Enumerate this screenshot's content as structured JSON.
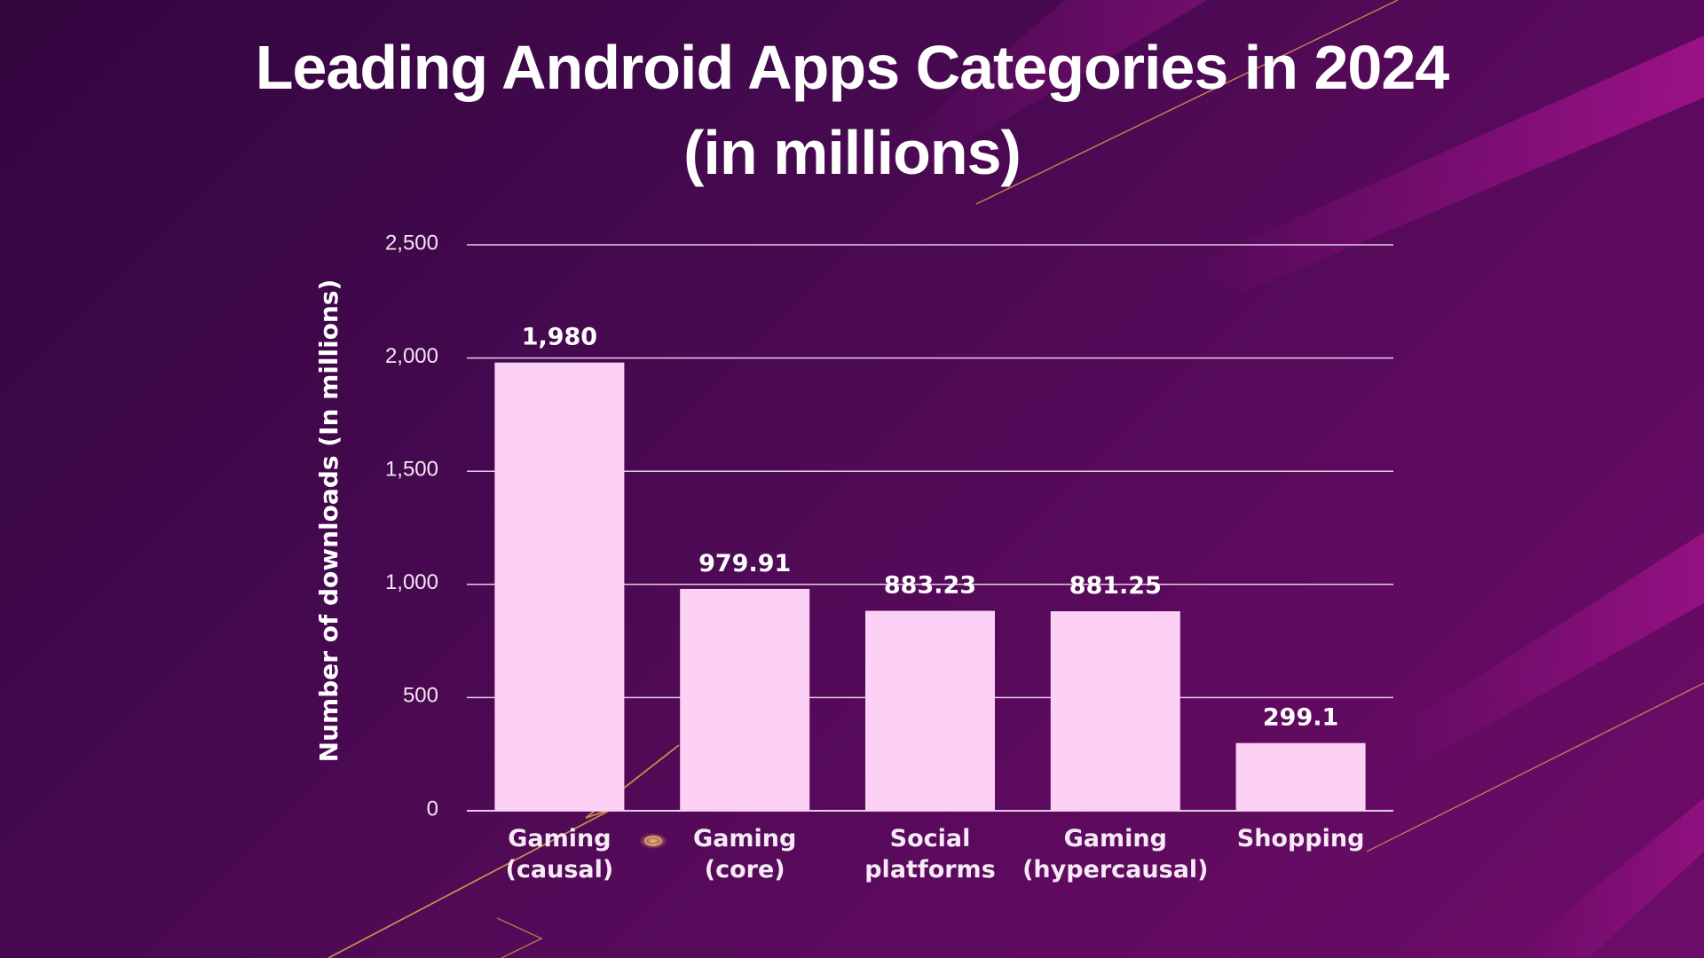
{
  "colors": {
    "background": "#45094f",
    "bar": "#fdd0f6",
    "gridline": "#e6cde6",
    "accent_line": "#e0a04a",
    "text": "#ffffff"
  },
  "chart_data": {
    "type": "bar",
    "title": [
      "Leading Android Apps Categories in 2024",
      "(in millions)"
    ],
    "xlabel": "",
    "ylabel": "Number of downloads (In millions)",
    "categories": [
      [
        "Gaming",
        "(causal)"
      ],
      [
        "Gaming",
        "(core)"
      ],
      [
        "Social",
        "platforms"
      ],
      [
        "Gaming",
        "(hypercausal)"
      ],
      [
        "Shopping"
      ]
    ],
    "values": [
      1980,
      979.91,
      883.23,
      881.25,
      299.1
    ],
    "value_labels": [
      "1,980",
      "979.91",
      "883.23",
      "881.25",
      "299.1"
    ],
    "ylim": [
      0,
      2500
    ],
    "yticks": [
      0,
      500,
      1000,
      1500,
      2000,
      2500
    ],
    "ytick_labels": [
      "0",
      "500",
      "1,000",
      "1,500",
      "2,000",
      "2,500"
    ],
    "grid": true,
    "legend": "none"
  }
}
